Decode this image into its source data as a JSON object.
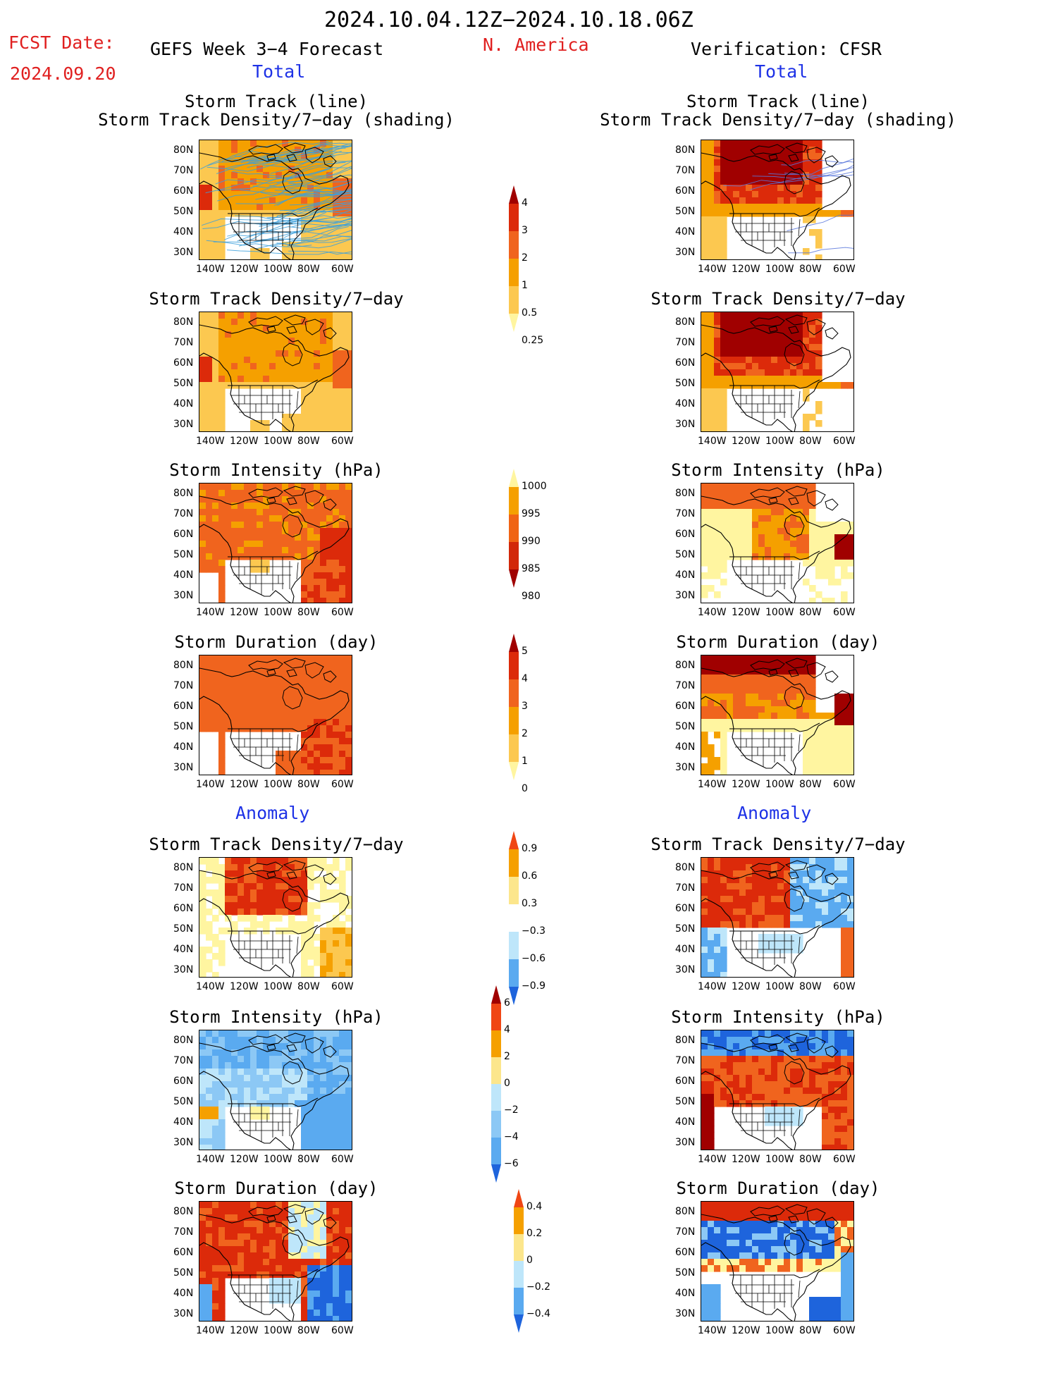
{
  "header": {
    "period": "2024.10.04.12Z−2024.10.18.06Z",
    "region": "N. America",
    "fcst_label": "FCST Date:",
    "fcst_date": "2024.09.20",
    "forecast_title": "GEFS Week 3−4 Forecast",
    "verification_title": "Verification: CFSR",
    "total_label": "Total",
    "anomaly_label": "Anomaly"
  },
  "titles": {
    "track_line": "Storm Track (line)",
    "track_shading": "Storm Track Density/7−day (shading)",
    "density": "Storm Track Density/7−day",
    "intensity": "Storm Intensity (hPa)",
    "duration": "Storm Duration (day)"
  },
  "axes": {
    "lat_ticks": [
      "80N",
      "70N",
      "60N",
      "50N",
      "40N",
      "30N"
    ],
    "lon_ticks": [
      "140W",
      "120W",
      "100W",
      "80W",
      "60W"
    ]
  },
  "colorbars": {
    "density_total": {
      "labels": [
        "4",
        "3",
        "2",
        "1",
        "0.5",
        "0.25"
      ],
      "colors": [
        "#a00000",
        "#dc2a0a",
        "#f0641e",
        "#f5a000",
        "#fcc850",
        "#fff5a0"
      ]
    },
    "intensity_total": {
      "labels": [
        "1000",
        "995",
        "990",
        "985",
        "980"
      ],
      "colors": [
        "#fff5a0",
        "#f5a000",
        "#f06414",
        "#d2280a",
        "#a00000"
      ]
    },
    "duration_total": {
      "labels": [
        "5",
        "4",
        "3",
        "2",
        "1",
        "0"
      ],
      "colors": [
        "#a00000",
        "#dc2a0a",
        "#f0641e",
        "#f5a000",
        "#fcc850",
        "#fff5a0"
      ]
    },
    "density_anom": {
      "labels": [
        "0.9",
        "0.6",
        "0.3",
        "−0.3",
        "−0.6",
        "−0.9"
      ],
      "colors": [
        "#f04614",
        "#f5a000",
        "#fce68c",
        "#ffffff",
        "#bee6fa",
        "#5aaaf0",
        "#1e64dc"
      ]
    },
    "intensity_anom": {
      "labels": [
        "6",
        "4",
        "2",
        "0",
        "−2",
        "−4",
        "−6"
      ],
      "colors": [
        "#a00000",
        "#f04614",
        "#f5a000",
        "#fce68c",
        "#bee6fa",
        "#8cc8f5",
        "#5aaaf0",
        "#1e64dc"
      ]
    },
    "duration_anom": {
      "labels": [
        "0.4",
        "0.2",
        "0",
        "−0.2",
        "−0.4"
      ],
      "colors": [
        "#f04614",
        "#f5a000",
        "#fce68c",
        "#bee6fa",
        "#5aaaf0",
        "#1e64dc"
      ]
    }
  }
}
